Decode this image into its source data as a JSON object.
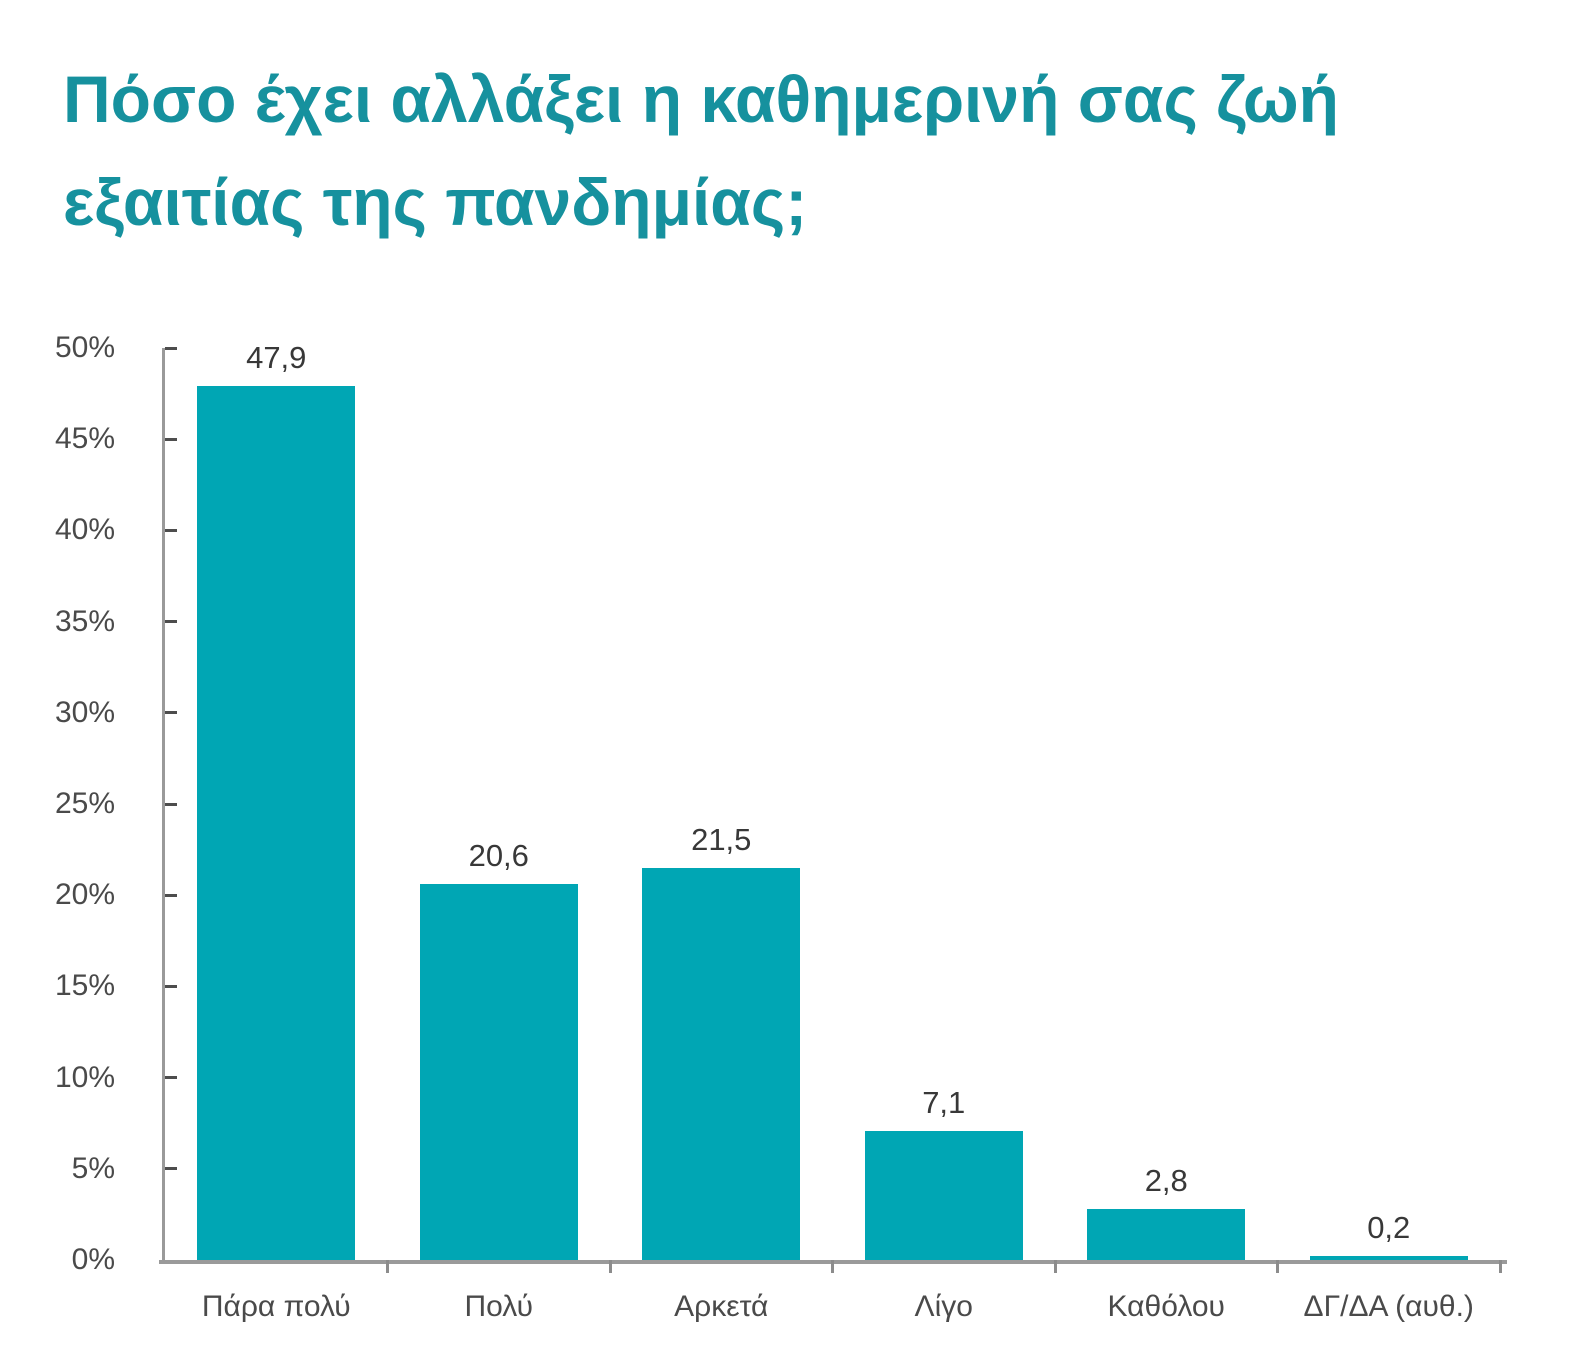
{
  "title": {
    "text": "Πόσο έχει αλλάξει η καθημερινή σας ζωή εξαιτίας της πανδημίας;",
    "lines": [
      "Πόσο έχει αλλάξει η καθημερινή σας ζωή",
      "εξαιτίας της πανδημίας;"
    ]
  },
  "colors": {
    "bar": "#00a6b4",
    "title": "#16919e",
    "axis_line": "#9a9a9a",
    "y_tick": "#4d4d4d",
    "x_tick": "#8c8c8c",
    "value_label": "#383838",
    "axis_label": "#4a4a4a"
  },
  "chart_data": {
    "type": "bar",
    "title": "Πόσο έχει αλλάξει η καθημερινή σας ζωή εξαιτίας της πανδημίας;",
    "categories": [
      "Πάρα πολύ",
      "Πολύ",
      "Αρκετά",
      "Λίγο",
      "Καθόλου",
      "ΔΓ/ΔΑ (αυθ.)"
    ],
    "values": [
      47.9,
      20.6,
      21.5,
      7.1,
      2.8,
      0.2
    ],
    "value_labels": [
      "47,9",
      "20,6",
      "21,5",
      "7,1",
      "2,8",
      "0,2"
    ],
    "xlabel": "",
    "ylabel": "",
    "ylim": [
      0,
      50
    ],
    "y_tick_step": 5,
    "y_tick_labels": [
      "0%",
      "5%",
      "10%",
      "15%",
      "20%",
      "25%",
      "30%",
      "35%",
      "40%",
      "45%",
      "50%"
    ],
    "grid": false,
    "legend": null
  }
}
